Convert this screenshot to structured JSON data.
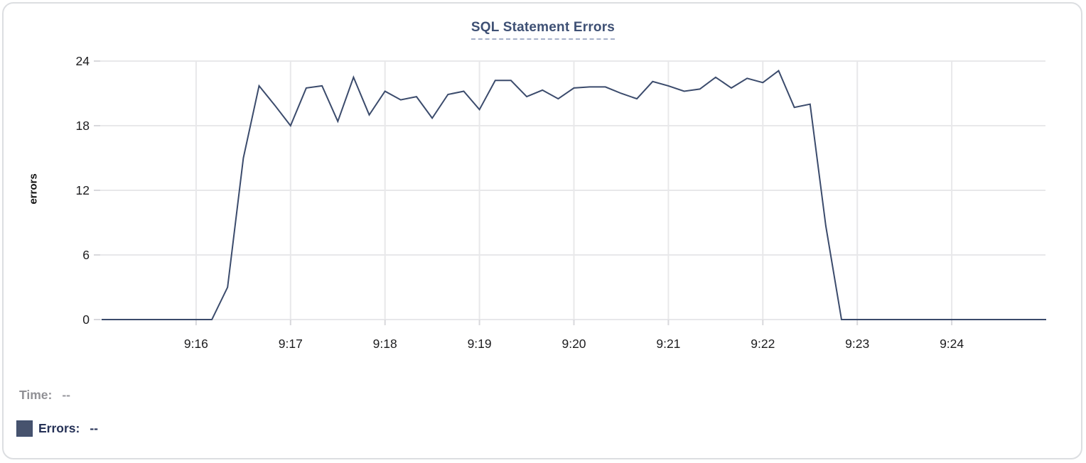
{
  "chart": {
    "title": "SQL Statement Errors",
    "ylabel": "errors"
  },
  "legend": {
    "time_label": "Time:",
    "time_value": "--",
    "errors_label": "Errors:",
    "errors_value": "--"
  },
  "colors": {
    "series_line": "#3b4b6c",
    "title_text": "#3e5074",
    "title_underline": "#a6b1c9",
    "legend_time_text": "#909095",
    "legend_errors_text": "#253156",
    "legend_swatch": "#47536e",
    "gridline": "#e8e8ea",
    "tick": "#d8d8dc",
    "axis_text": "#1c1c1e",
    "card_border": "#dcdee1"
  },
  "chart_data": {
    "type": "line",
    "title": "SQL Statement Errors",
    "xlabel": "",
    "ylabel": "errors",
    "grid": true,
    "legend_position": "bottom-left",
    "ylim": [
      0,
      24
    ],
    "y_ticks": [
      0,
      6,
      12,
      18,
      24
    ],
    "x_tick_labels": [
      "9:16",
      "9:17",
      "9:18",
      "9:19",
      "9:20",
      "9:21",
      "9:22",
      "9:23",
      "9:24"
    ],
    "x_tick_seconds": [
      60,
      120,
      180,
      240,
      300,
      360,
      420,
      480,
      540
    ],
    "x_range_seconds": [
      0,
      600
    ],
    "x_range_labels": [
      "9:15:00",
      "9:25:00"
    ],
    "sample_interval_seconds": 10,
    "series": [
      {
        "name": "Errors",
        "color": "#3b4b6c",
        "points": [
          [
            "9:15:00",
            0
          ],
          [
            "9:15:10",
            0
          ],
          [
            "9:15:20",
            0
          ],
          [
            "9:15:30",
            0
          ],
          [
            "9:15:40",
            0
          ],
          [
            "9:15:50",
            0
          ],
          [
            "9:16:00",
            0
          ],
          [
            "9:16:10",
            0
          ],
          [
            "9:16:20",
            3
          ],
          [
            "9:16:30",
            15
          ],
          [
            "9:16:40",
            21.7
          ],
          [
            "9:16:50",
            19.9
          ],
          [
            "9:17:00",
            18
          ],
          [
            "9:17:10",
            21.5
          ],
          [
            "9:17:20",
            21.7
          ],
          [
            "9:17:30",
            18.4
          ],
          [
            "9:17:40",
            22.5
          ],
          [
            "9:17:50",
            19
          ],
          [
            "9:18:00",
            21.2
          ],
          [
            "9:18:10",
            20.4
          ],
          [
            "9:18:20",
            20.7
          ],
          [
            "9:18:30",
            18.7
          ],
          [
            "9:18:40",
            20.9
          ],
          [
            "9:18:50",
            21.2
          ],
          [
            "9:19:00",
            19.5
          ],
          [
            "9:19:10",
            22.2
          ],
          [
            "9:19:20",
            22.2
          ],
          [
            "9:19:30",
            20.7
          ],
          [
            "9:19:40",
            21.3
          ],
          [
            "9:19:50",
            20.5
          ],
          [
            "9:20:00",
            21.5
          ],
          [
            "9:20:10",
            21.6
          ],
          [
            "9:20:20",
            21.6
          ],
          [
            "9:20:30",
            21.0
          ],
          [
            "9:20:40",
            20.5
          ],
          [
            "9:20:50",
            22.1
          ],
          [
            "9:21:00",
            21.7
          ],
          [
            "9:21:10",
            21.2
          ],
          [
            "9:21:20",
            21.4
          ],
          [
            "9:21:30",
            22.5
          ],
          [
            "9:21:40",
            21.5
          ],
          [
            "9:21:50",
            22.4
          ],
          [
            "9:22:00",
            22.0
          ],
          [
            "9:22:10",
            23.1
          ],
          [
            "9:22:20",
            19.7
          ],
          [
            "9:22:30",
            20.0
          ],
          [
            "9:22:40",
            8.7
          ],
          [
            "9:22:50",
            0
          ],
          [
            "9:23:00",
            0
          ],
          [
            "9:23:10",
            0
          ],
          [
            "9:23:20",
            0
          ],
          [
            "9:23:30",
            0
          ],
          [
            "9:23:40",
            0
          ],
          [
            "9:23:50",
            0
          ],
          [
            "9:24:00",
            0
          ],
          [
            "9:24:10",
            0
          ],
          [
            "9:24:20",
            0
          ],
          [
            "9:24:30",
            0
          ],
          [
            "9:24:40",
            0
          ],
          [
            "9:24:50",
            0
          ],
          [
            "9:25:00",
            0
          ]
        ]
      }
    ]
  }
}
